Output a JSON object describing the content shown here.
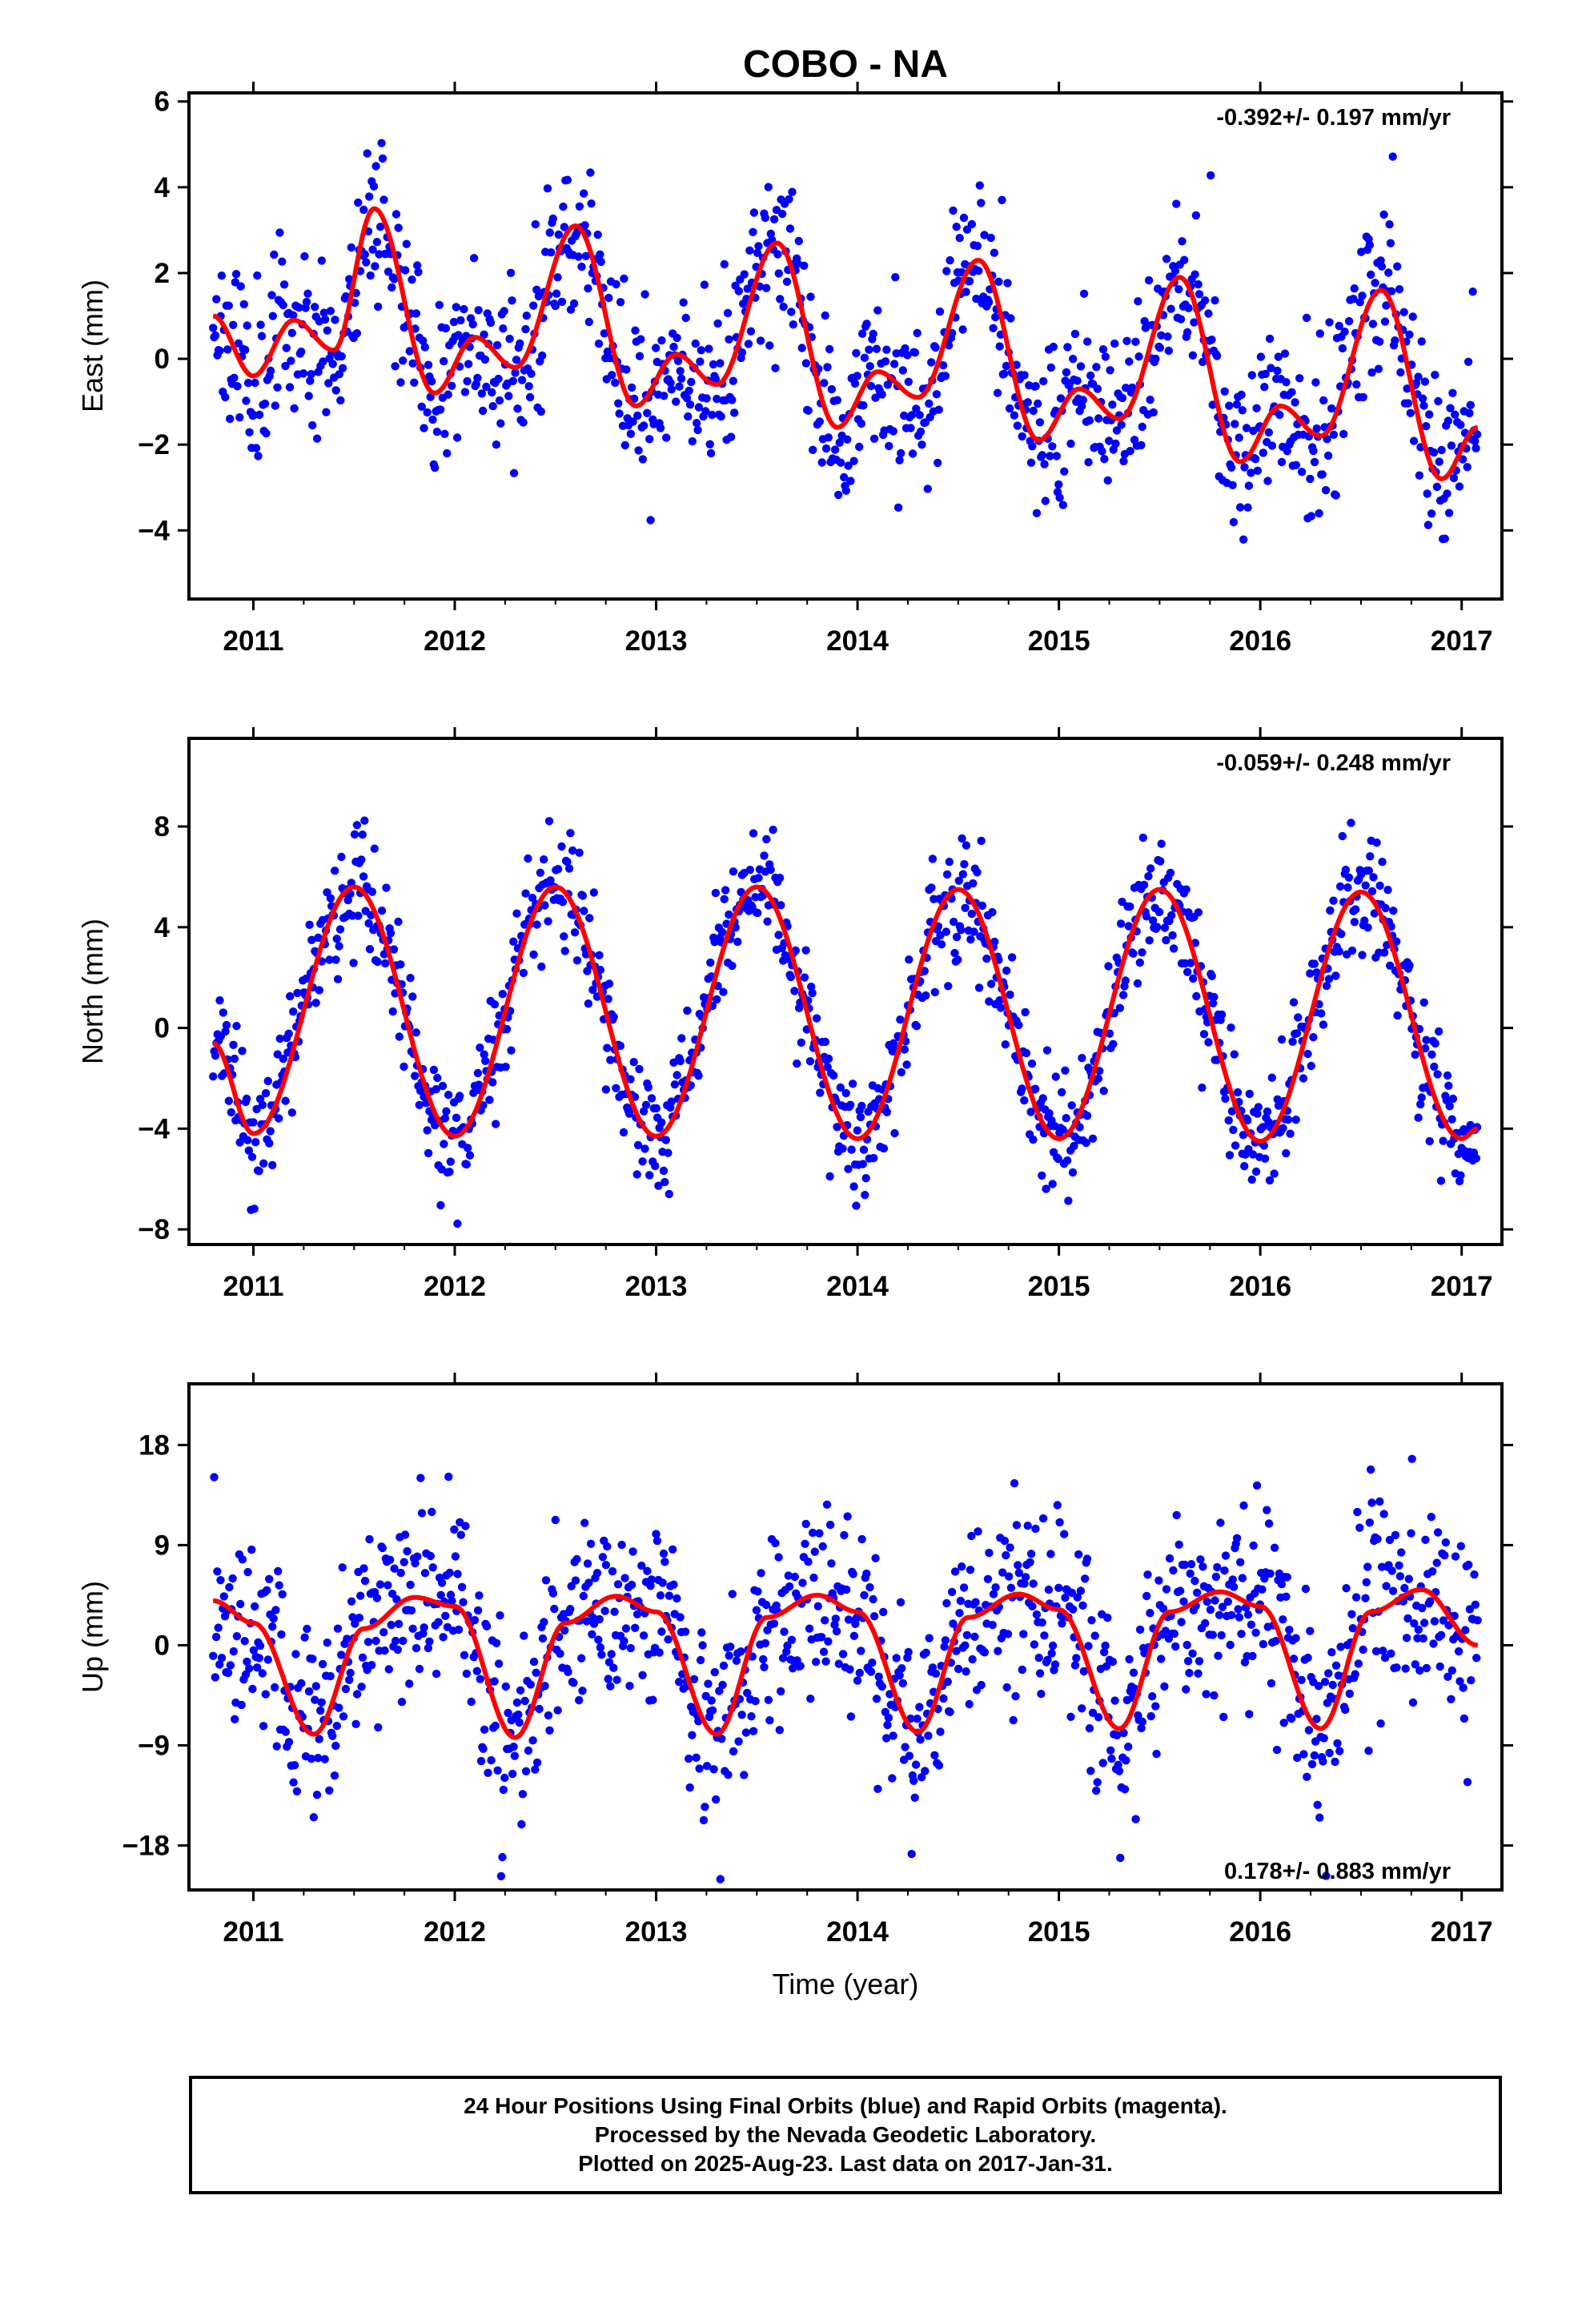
{
  "title": "COBO - NA",
  "xlabel": "Time (year)",
  "x_ticks": [
    "2011",
    "2012",
    "2013",
    "2014",
    "2015",
    "2016",
    "2017"
  ],
  "colors": {
    "final_orbits": "#0000ff",
    "model": "#ff0000",
    "axes": "#000000"
  },
  "chart_data": [
    {
      "type": "scatter",
      "panel": "East",
      "ylabel": "East (mm)",
      "xlim": [
        2010.68,
        2017.2
      ],
      "ylim": [
        -5.6,
        6.2
      ],
      "y_ticks": [
        -4,
        -2,
        0,
        2,
        4,
        6
      ],
      "rate_label": "-0.392+/- 0.197 mm/yr",
      "rate_position": "top-right",
      "grid": false,
      "data_span": [
        2010.8,
        2017.08
      ],
      "model_curve": {
        "name": "model",
        "x": [
          2010.8,
          2011.0,
          2011.2,
          2011.4,
          2011.6,
          2011.9,
          2012.1,
          2012.3,
          2012.6,
          2012.9,
          2013.1,
          2013.3,
          2013.6,
          2013.9,
          2014.1,
          2014.3,
          2014.6,
          2014.9,
          2015.1,
          2015.3,
          2015.6,
          2015.9,
          2016.1,
          2016.3,
          2016.6,
          2016.9,
          2017.08
        ],
        "y": [
          1.0,
          -0.4,
          0.9,
          0.2,
          3.5,
          -0.8,
          0.5,
          -0.2,
          3.1,
          -1.1,
          0.1,
          -0.6,
          2.7,
          -1.6,
          -0.3,
          -0.9,
          2.3,
          -1.9,
          -0.7,
          -1.4,
          1.9,
          -2.4,
          -1.1,
          -1.8,
          1.6,
          -2.8,
          -1.6
        ]
      },
      "scatter_seed": 11,
      "scatter_spread_mm": 1.0
    },
    {
      "type": "scatter",
      "panel": "North",
      "ylabel": "North (mm)",
      "xlim": [
        2010.68,
        2017.2
      ],
      "ylim": [
        -8.6,
        11.5
      ],
      "y_ticks": [
        -8,
        -4,
        0,
        4,
        8
      ],
      "rate_label": "-0.059+/- 0.248 mm/yr",
      "rate_position": "top-right",
      "grid": false,
      "data_span": [
        2010.8,
        2017.08
      ],
      "model_curve": {
        "name": "model",
        "x": [
          2010.8,
          2011.0,
          2011.5,
          2012.0,
          2012.5,
          2013.0,
          2013.5,
          2014.0,
          2014.5,
          2015.0,
          2015.5,
          2016.0,
          2016.5,
          2017.0,
          2017.08
        ],
        "y": [
          -0.6,
          -4.2,
          5.6,
          -4.3,
          5.6,
          -4.3,
          5.6,
          -4.4,
          5.5,
          -4.4,
          5.5,
          -4.5,
          5.4,
          -4.4,
          -4.0
        ]
      },
      "scatter_seed": 23,
      "scatter_spread_mm": 1.2
    },
    {
      "type": "scatter",
      "panel": "Up",
      "ylabel": "Up (mm)",
      "xlim": [
        2010.68,
        2017.2
      ],
      "ylim": [
        -22.0,
        23.5
      ],
      "y_ticks": [
        -18,
        -9,
        0,
        9,
        18
      ],
      "rate_label": "0.178+/- 0.883 mm/yr",
      "rate_position": "bottom-right",
      "grid": false,
      "data_span": [
        2010.8,
        2017.08
      ],
      "model_curve": {
        "name": "model",
        "x": [
          2010.8,
          2011.0,
          2011.3,
          2011.55,
          2011.8,
          2012.0,
          2012.3,
          2012.55,
          2012.8,
          2013.0,
          2013.3,
          2013.55,
          2013.8,
          2014.0,
          2014.3,
          2014.55,
          2014.8,
          2015.0,
          2015.3,
          2015.55,
          2015.8,
          2016.0,
          2016.3,
          2016.55,
          2016.8,
          2017.08
        ],
        "y": [
          4.0,
          2.0,
          -8.0,
          1.5,
          4.3,
          3.5,
          -8.3,
          2.0,
          4.4,
          3.0,
          -8.0,
          2.5,
          4.5,
          3.0,
          -7.8,
          2.5,
          4.6,
          3.2,
          -7.5,
          3.0,
          4.8,
          3.5,
          -7.5,
          3.0,
          5.0,
          0.0
        ]
      },
      "scatter_seed": 37,
      "scatter_spread_mm": 4.5
    }
  ],
  "caption": {
    "line1": "24 Hour Positions Using Final Orbits (blue) and Rapid Orbits (magenta).",
    "line2": "Processed by the Nevada Geodetic Laboratory.",
    "line3": "Plotted on 2025-Aug-23. Last data on 2017-Jan-31."
  }
}
